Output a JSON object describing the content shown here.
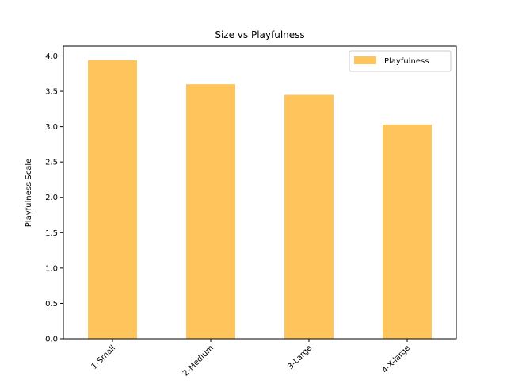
{
  "chart_data": {
    "type": "bar",
    "title": "Size vs Playfulness",
    "xlabel": "",
    "ylabel": "Playfulness Scale",
    "categories": [
      "1-Small",
      "2-Medium",
      "3-Large",
      "4-X-large"
    ],
    "series": [
      {
        "name": "Playfulness",
        "values": [
          3.94,
          3.6,
          3.45,
          3.03
        ],
        "color": "#FFC45C"
      }
    ],
    "ylim": [
      0,
      4.14
    ],
    "yticks": [
      0.0,
      0.5,
      1.0,
      1.5,
      2.0,
      2.5,
      3.0,
      3.5,
      4.0
    ],
    "ytick_labels": [
      "0.0",
      "0.5",
      "1.0",
      "1.5",
      "2.0",
      "2.5",
      "3.0",
      "3.5",
      "4.0"
    ],
    "grid": false,
    "legend_position": "top-right",
    "xtick_rotation": 45
  }
}
